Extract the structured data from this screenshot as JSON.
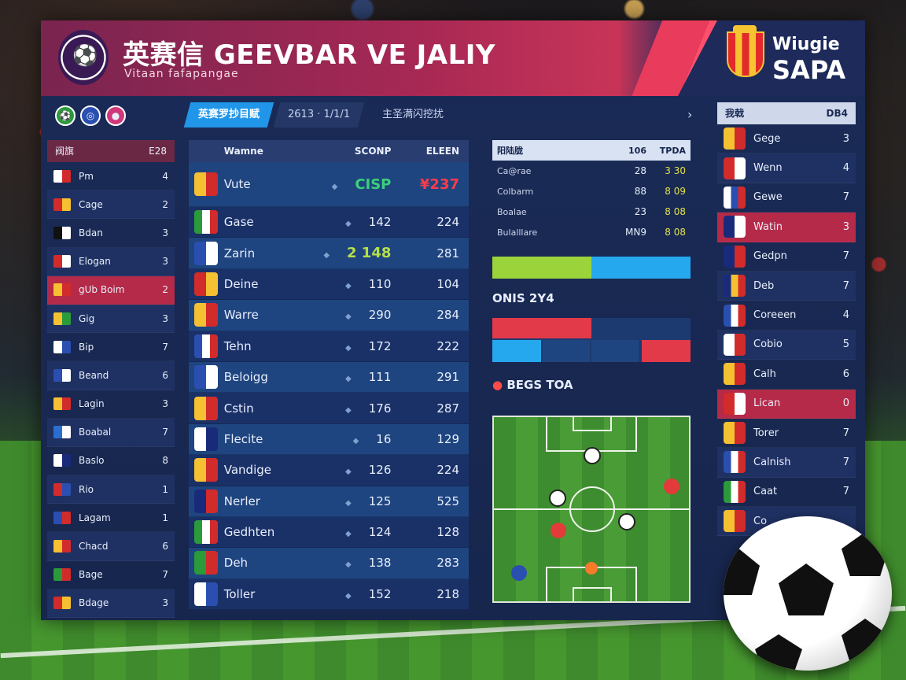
{
  "header": {
    "title": "英赛信 GEEVBAR VE JALIY",
    "subtitle": "Vitaan fafapangae",
    "brand_line1": "Wiugie",
    "brand_line2": "SAPA"
  },
  "toolbar": {
    "icons": [
      "soccer-icon",
      "globe-icon",
      "basketball-icon"
    ],
    "tabs": [
      "英赛罗抄目赋",
      "2613 · 1/1/1",
      "主圣满闪挖扰"
    ]
  },
  "left_list": {
    "header": {
      "label": "阀旗",
      "value": "E28"
    },
    "rows": [
      {
        "name": "Pm",
        "num": "4",
        "flag": [
          "#ffffff",
          "#d22b2b"
        ]
      },
      {
        "name": "Cage",
        "num": "2",
        "flag": [
          "#d22b2b",
          "#f5c031"
        ]
      },
      {
        "name": "Bdan",
        "num": "3",
        "flag": [
          "#111111",
          "#ffffff"
        ]
      },
      {
        "name": "Elogan",
        "num": "3",
        "flag": [
          "#d22b2b",
          "#ffffff"
        ]
      },
      {
        "name": "gUb Boim",
        "num": "2",
        "flag": [
          "#f5c031",
          "#d22b2b"
        ],
        "highlight": true
      },
      {
        "name": "Gig",
        "num": "3",
        "flag": [
          "#f5c031",
          "#2a9a3a"
        ]
      },
      {
        "name": "Bip",
        "num": "7",
        "flag": [
          "#ffffff",
          "#2a4fb0"
        ]
      },
      {
        "name": "Beand",
        "num": "6",
        "flag": [
          "#2a4fb0",
          "#ffffff"
        ]
      },
      {
        "name": "Lagin",
        "num": "3",
        "flag": [
          "#f5c031",
          "#d22b2b"
        ]
      },
      {
        "name": "Boabal",
        "num": "7",
        "flag": [
          "#2a6fd0",
          "#ffffff"
        ]
      },
      {
        "name": "Baslo",
        "num": "8",
        "flag": [
          "#ffffff",
          "#1a2a7a"
        ]
      },
      {
        "name": "Rio",
        "num": "1",
        "flag": [
          "#d22b2b",
          "#2a4fb0"
        ]
      },
      {
        "name": "Lagam",
        "num": "1",
        "flag": [
          "#2a4fb0",
          "#d22b2b"
        ]
      },
      {
        "name": "Chacd",
        "num": "6",
        "flag": [
          "#f5c031",
          "#d22b2b"
        ]
      },
      {
        "name": "Bage",
        "num": "7",
        "flag": [
          "#2a9a3a",
          "#d22b2b"
        ]
      },
      {
        "name": "Bdage",
        "num": "3",
        "flag": [
          "#d22b2b",
          "#f5c031"
        ]
      }
    ]
  },
  "main_table": {
    "headers": [
      "Wamne",
      "SCONP",
      "ELEEN"
    ],
    "rows": [
      {
        "name": "Vute",
        "score": "CISP",
        "value": "¥237",
        "flag": [
          "#f5c031",
          "#d22b2b"
        ],
        "score_color": "#3bd07a",
        "value_color": "#ff3b4a"
      },
      {
        "name": "Gase",
        "score": "142",
        "value": "224",
        "flag": [
          "#2a9a3a",
          "#ffffff",
          "#d22b2b"
        ]
      },
      {
        "name": "Zarin",
        "score": "2 148",
        "value": "281",
        "flag": [
          "#2a4fb0",
          "#ffffff"
        ],
        "score_color": "#b5e04a"
      },
      {
        "name": "Deine",
        "score": "110",
        "value": "104",
        "flag": [
          "#d22b2b",
          "#f5c031"
        ]
      },
      {
        "name": "Warre",
        "score": "290",
        "value": "284",
        "flag": [
          "#f5c031",
          "#d22b2b"
        ]
      },
      {
        "name": "Tehn",
        "score": "172",
        "value": "222",
        "flag": [
          "#2a4fb0",
          "#ffffff",
          "#d22b2b"
        ]
      },
      {
        "name": "Beloigg",
        "score": "111",
        "value": "291",
        "flag": [
          "#2a4fb0",
          "#ffffff"
        ]
      },
      {
        "name": "Cstin",
        "score": "176",
        "value": "287",
        "flag": [
          "#f5c031",
          "#d22b2b"
        ]
      },
      {
        "name": "Flecite",
        "score": "16",
        "value": "129",
        "flag": [
          "#ffffff",
          "#1a2a7a"
        ]
      },
      {
        "name": "Vandige",
        "score": "126",
        "value": "224",
        "flag": [
          "#f5c031",
          "#d22b2b"
        ]
      },
      {
        "name": "Nerler",
        "score": "125",
        "value": "525",
        "flag": [
          "#1a2a7a",
          "#d22b2b"
        ]
      },
      {
        "name": "Gedhten",
        "score": "124",
        "value": "128",
        "flag": [
          "#2a9a3a",
          "#ffffff",
          "#d22b2b"
        ]
      },
      {
        "name": "Deh",
        "score": "138",
        "value": "283",
        "flag": [
          "#2a9a3a",
          "#d22b2b"
        ]
      },
      {
        "name": "Toller",
        "score": "152",
        "value": "218",
        "flag": [
          "#ffffff",
          "#2a4fb0"
        ]
      }
    ]
  },
  "stats": {
    "header": {
      "label": "阳陆胧",
      "v1": "106",
      "v2": "TPDA"
    },
    "rows": [
      {
        "label": "Ca@rae",
        "v1": "28",
        "v2": "3 30"
      },
      {
        "label": "Colbarm",
        "v1": "88",
        "v2": "8 09"
      },
      {
        "label": "Boalae",
        "v1": "23",
        "v2": "8 08"
      },
      {
        "label": "Bulalllare",
        "v1": "MN9",
        "v2": "8 08"
      }
    ],
    "bar1_fraction": 0.5,
    "section1_title": "ONIS 2Y4",
    "section2_title": "BEGS TOA"
  },
  "right_list": {
    "header": {
      "label": "我戟",
      "value": "DB4"
    },
    "rows": [
      {
        "name": "Gege",
        "num": "3",
        "flag": [
          "#f5c031",
          "#d22b2b"
        ]
      },
      {
        "name": "Wenn",
        "num": "4",
        "flag": [
          "#d22b2b",
          "#ffffff"
        ]
      },
      {
        "name": "Gewe",
        "num": "7",
        "flag": [
          "#ffffff",
          "#2a4fb0",
          "#d22b2b"
        ]
      },
      {
        "name": "Watin",
        "num": "3",
        "flag": [
          "#1a2a7a",
          "#ffffff"
        ],
        "highlight": true
      },
      {
        "name": "Gedpn",
        "num": "7",
        "flag": [
          "#1a2a7a",
          "#d22b2b"
        ]
      },
      {
        "name": "Deb",
        "num": "7",
        "flag": [
          "#1a2a7a",
          "#f5c031",
          "#d22b2b"
        ]
      },
      {
        "name": "Coreeen",
        "num": "4",
        "flag": [
          "#2a4fb0",
          "#ffffff",
          "#d22b2b"
        ]
      },
      {
        "name": "Cobio",
        "num": "5",
        "flag": [
          "#ffffff",
          "#d22b2b"
        ]
      },
      {
        "name": "Calh",
        "num": "6",
        "flag": [
          "#f5c031",
          "#d22b2b"
        ]
      },
      {
        "name": "Lican",
        "num": "0",
        "flag": [
          "#d22b2b",
          "#ffffff"
        ],
        "highlight": true
      },
      {
        "name": "Torer",
        "num": "7",
        "flag": [
          "#f5c031",
          "#d22b2b"
        ]
      },
      {
        "name": "Calnish",
        "num": "7",
        "flag": [
          "#2a4fb0",
          "#ffffff",
          "#d22b2b"
        ]
      },
      {
        "name": "Caat",
        "num": "7",
        "flag": [
          "#2a9a3a",
          "#ffffff",
          "#d22b2b"
        ]
      },
      {
        "name": "Co",
        "num": "",
        "flag": [
          "#f5c031",
          "#d22b2b"
        ]
      }
    ]
  },
  "colors": {
    "accent": "#2196e8",
    "highlight": "#b52a48",
    "panel": "#17264d"
  }
}
